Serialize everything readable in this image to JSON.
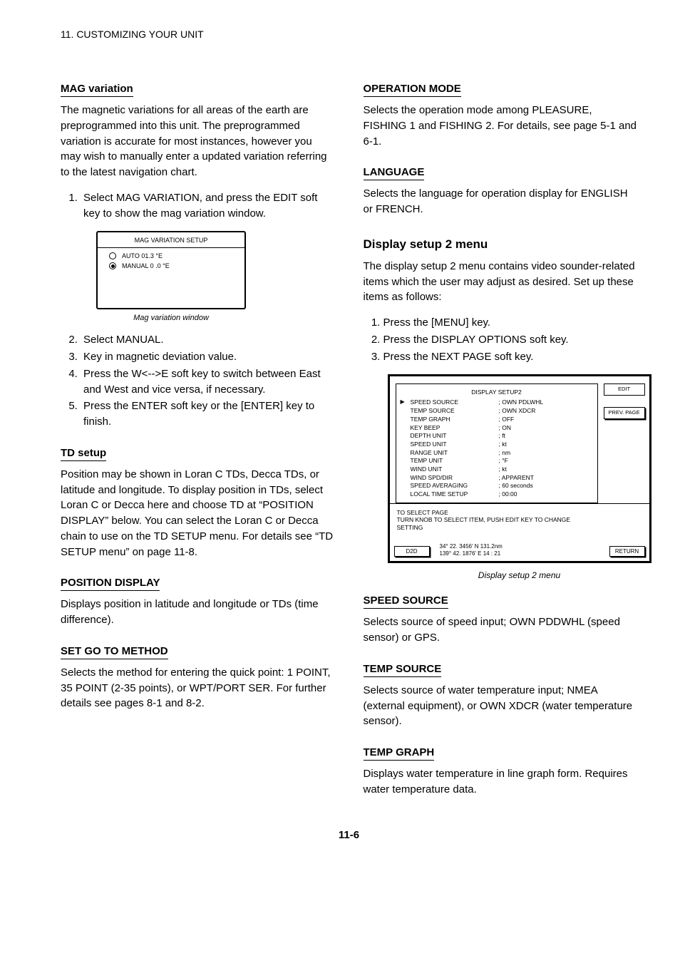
{
  "header": "11. CUSTOMIZING YOUR UNIT",
  "left": {
    "magvar": {
      "heading": "MAG variation",
      "paragraph": "The magnetic variations for all areas of the earth are preprogrammed into this unit. The preprogrammed variation is accurate for most instances, however you may wish to manually enter a updated variation referring to the latest navigation chart.",
      "step1": "Select MAG VARIATION, and press the EDIT soft key to show the mag variation window.",
      "fig": {
        "title": "MAG VARIATION SETUP",
        "auto_label": "AUTO  01.3 °E",
        "manual_label": "MANUAL     0 .0 °E",
        "caption": "Mag variation window"
      },
      "steps_cont": [
        "Select MANUAL.",
        "Key in magnetic deviation value.",
        "Press the W<-->E soft key to switch between East and West and vice versa, if necessary.",
        "Press the ENTER soft key or the [ENTER] key to finish."
      ]
    },
    "tdsetup": {
      "heading": "TD setup",
      "paragraph": "Position may be shown in Loran C TDs, Decca TDs, or latitude and longitude. To display position in TDs, select Loran C or Decca here and choose TD at “POSITION DISPLAY” below. You can select the Loran C or Decca chain to use on the TD SETUP menu. For details see “TD SETUP menu” on page 11-8."
    },
    "posdisplay": {
      "heading": "POSITION DISPLAY",
      "paragraph": "Displays position in latitude and longitude or TDs (time difference)."
    },
    "setgotomethod": {
      "heading": "SET GO TO METHOD",
      "paragraph": "Selects the method for entering the quick point: 1 POINT, 35 POINT (2-35 points), or WPT/PORT SER. For further details see pages 8-1 and 8-2."
    }
  },
  "right": {
    "opmode": {
      "heading": "OPERATION MODE",
      "paragraph": "Selects the operation mode among PLEASURE, FISHING 1 and FISHING 2. For details, see page 5-1 and 6-1."
    },
    "language": {
      "heading": "LANGUAGE",
      "paragraph": "Selects the language for operation display for ENGLISH or FRENCH."
    },
    "setup2": {
      "big_heading": "Display setup 2 menu",
      "paragraph": "The display setup 2 menu contains video sounder-related items which the user may adjust as desired. Set up these items as follows:",
      "num": [
        "Press the [MENU] key.",
        "Press the DISPLAY OPTIONS soft key.",
        "Press the NEXT PAGE soft key."
      ],
      "fig": {
        "title": "DISPLAY SETUP2",
        "rows": [
          {
            "k": "SPEED SOURCE",
            "v": "; OWN PDLWHL"
          },
          {
            "k": "TEMP SOURCE",
            "v": "; OWN XDCR"
          },
          {
            "k": "TEMP GRAPH",
            "v": "; OFF"
          },
          {
            "k": "KEY BEEP",
            "v": "; ON"
          },
          {
            "k": "DEPTH UNIT",
            "v": "; ft"
          },
          {
            "k": "SPEED UNIT",
            "v": "; kt"
          },
          {
            "k": "RANGE UNIT",
            "v": "; nm"
          },
          {
            "k": "TEMP UNIT",
            "v": "; °F"
          },
          {
            "k": "WIND UNIT",
            "v": "; kt"
          },
          {
            "k": "WIND SPD/DIR",
            "v": "; APPARENT"
          },
          {
            "k": "SPEED AVERAGING",
            "v": "; 60 seconds"
          },
          {
            "k": "LOCAL TIME SETUP",
            "v": "; 00:00"
          }
        ],
        "softkeys": [
          "EDIT",
          "PREV. PAGE"
        ],
        "hint1": "TO SELECT PAGE",
        "hint2": "TURN KNOB TO SELECT ITEM, PUSH EDIT KEY TO CHANGE SETTING",
        "status_left": "D2D",
        "status_mid_1": "34° 22. 3456' N     131.2nm",
        "status_mid_2": "139° 42. 1876' E    14 : 21",
        "status_right": "RETURN",
        "caption": "Display setup 2 menu"
      }
    },
    "speed": {
      "heading": "SPEED SOURCE",
      "paragraph": "Selects source of speed input; OWN PDDWHL (speed sensor) or GPS."
    },
    "temp_src": {
      "heading": "TEMP SOURCE",
      "paragraph": "Selects source of water temperature input; NMEA (external equipment), or OWN XDCR (water temperature sensor)."
    },
    "temp_graph": {
      "heading": "TEMP GRAPH",
      "paragraph": "Displays water temperature in line graph form. Requires water temperature data."
    }
  },
  "page_number": "11-6"
}
